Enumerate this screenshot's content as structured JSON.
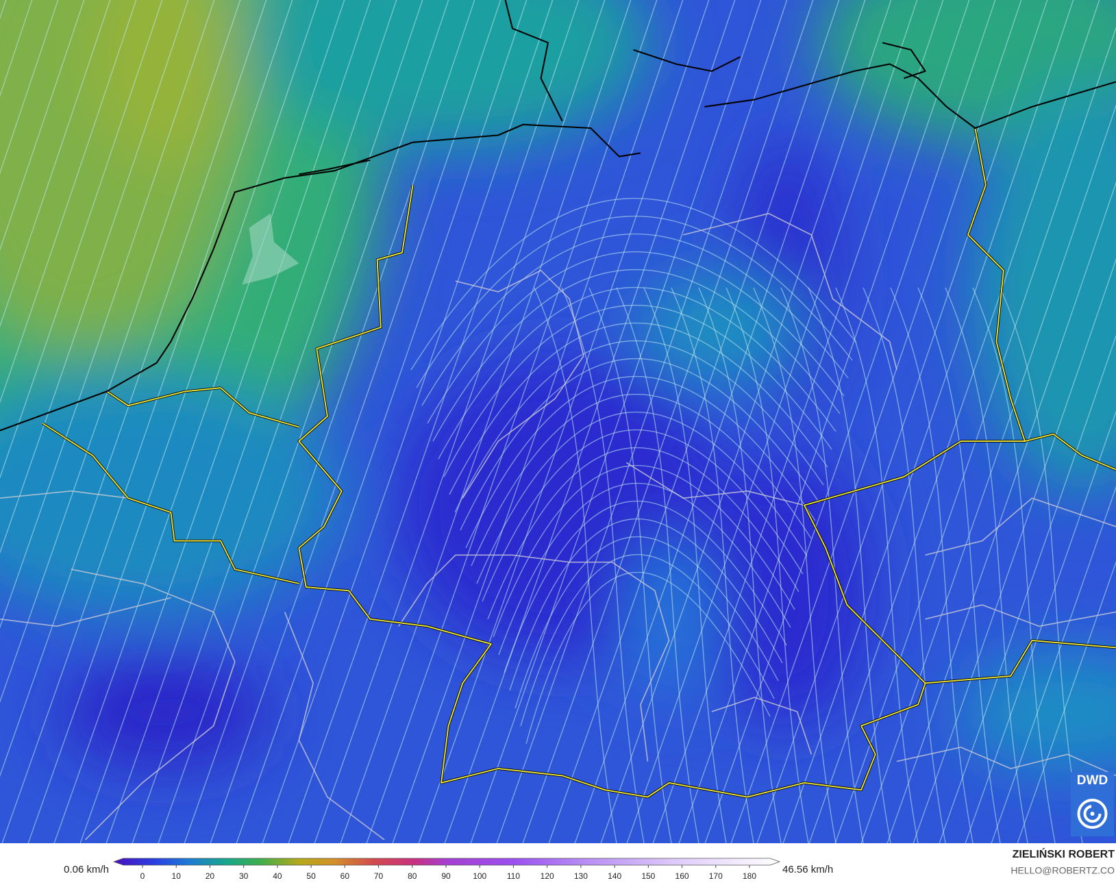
{
  "legend": {
    "min_label": "0.06 km/h",
    "max_label": "46.56 km/h",
    "range": [
      0,
      180
    ],
    "ticks": [
      0,
      10,
      20,
      30,
      40,
      50,
      60,
      70,
      80,
      90,
      100,
      110,
      120,
      130,
      140,
      150,
      160,
      170,
      180
    ]
  },
  "logo": "DWD",
  "author": {
    "name": "ZIELIŃSKI ROBERT",
    "email": "HELLO@ROBERTZ.CO"
  }
}
